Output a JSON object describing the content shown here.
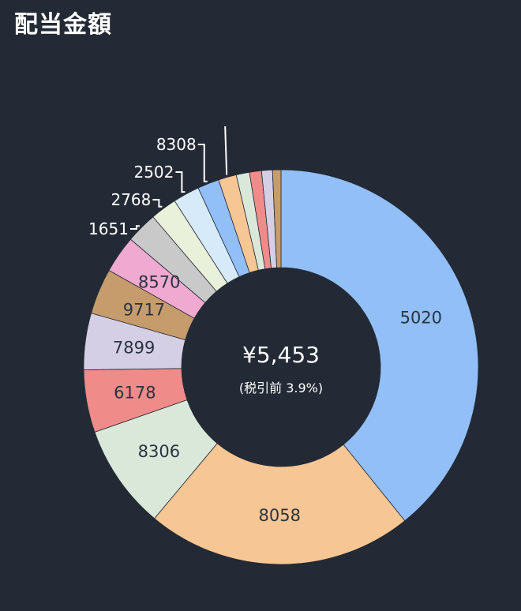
{
  "header": {
    "title": "配当金額"
  },
  "center": {
    "amount": "¥5,453",
    "subtitle": "(税引前 3.9%)"
  },
  "chart_data": {
    "type": "donut",
    "title": "配当金額",
    "total_label": "¥5,453",
    "total_sub_label": "(税引前 3.9%)",
    "segments": [
      {
        "label": "5020",
        "percent": 39.8,
        "color": "#92bff7"
      },
      {
        "label": "8058",
        "percent": 22.2,
        "color": "#f6c694"
      },
      {
        "label": "8306",
        "percent": 8.7,
        "color": "#dae8da"
      },
      {
        "label": "6178",
        "percent": 5.2,
        "color": "#ef8c8a"
      },
      {
        "label": "7899",
        "percent": 4.7,
        "color": "#d5cfe5"
      },
      {
        "label": "9717",
        "percent": 3.8,
        "color": "#c69c6d"
      },
      {
        "label": "8570",
        "percent": 3.1,
        "color": "#f0a9d0"
      },
      {
        "label": "1651",
        "percent": 2.6,
        "color": "#c9c9c9"
      },
      {
        "label": "2768",
        "percent": 2.2,
        "color": "#e9f1da"
      },
      {
        "label": "2502",
        "percent": 2.2,
        "color": "#d6eafa"
      },
      {
        "label": "8308",
        "percent": 1.8,
        "color": "#92bff7"
      },
      {
        "label": "",
        "percent": 1.5,
        "color": "#f6c694"
      },
      {
        "label": "",
        "percent": 1.1,
        "color": "#dae8da"
      },
      {
        "label": "",
        "percent": 1.0,
        "color": "#ef8c8a"
      },
      {
        "label": "",
        "percent": 0.9,
        "color": "#d5cfe5"
      },
      {
        "label": "",
        "percent": 0.7,
        "color": "#c69c6d"
      }
    ]
  }
}
